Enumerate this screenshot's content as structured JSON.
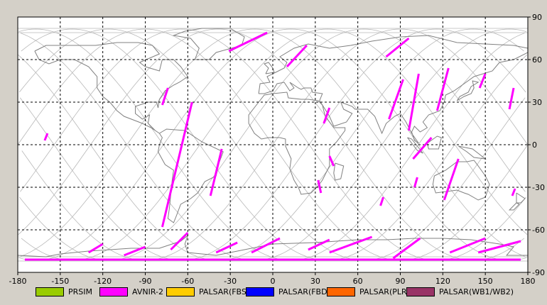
{
  "map": {
    "x_axis": {
      "min": -180,
      "max": 180,
      "step": 30,
      "ticks": [
        "-180",
        "-150",
        "-120",
        "-90",
        "-60",
        "-30",
        "0",
        "30",
        "60",
        "90",
        "120",
        "150",
        "180"
      ]
    },
    "y_axis": {
      "min": -90,
      "max": 90,
      "step": 30,
      "ticks": [
        "90",
        "60",
        "30",
        "0",
        "-30",
        "-60",
        "-90"
      ]
    },
    "grid": true,
    "colors": {
      "ocean": "#ffffff",
      "coast": "#808080",
      "orbit": "#b8b8b8",
      "swath": "#ff00ff",
      "grid": "#000000"
    }
  },
  "legend": {
    "items": [
      {
        "label": "PRSIM",
        "color": "#99cc00"
      },
      {
        "label": "AVNIR-2",
        "color": "#ff00ff"
      },
      {
        "label": "PALSAR(FBS)",
        "color": "#ffcc00"
      },
      {
        "label": "PALSAR(FBD)",
        "color": "#0000ff"
      },
      {
        "label": "PALSAR(PLR)",
        "color": "#ff6600"
      },
      {
        "label": "PALSAR(WB1/WB2)",
        "color": "#993366"
      }
    ]
  },
  "swaths": [
    {
      "lon": [
        -161,
        -159
      ],
      "lat": [
        3,
        8
      ]
    },
    {
      "lon": [
        -78,
        -74
      ],
      "lat": [
        28,
        40
      ]
    },
    {
      "lon": [
        -57,
        -78
      ],
      "lat": [
        30,
        -58
      ]
    },
    {
      "lon": [
        -36,
        -44
      ],
      "lat": [
        -3,
        -36
      ]
    },
    {
      "lon": [
        -31,
        -4
      ],
      "lat": [
        66,
        79
      ]
    },
    {
      "lon": [
        10,
        24
      ],
      "lat": [
        55,
        70
      ]
    },
    {
      "lon": [
        36,
        40
      ],
      "lat": [
        15,
        26
      ]
    },
    {
      "lon": [
        32,
        34
      ],
      "lat": [
        -25,
        -34
      ]
    },
    {
      "lon": [
        40,
        43
      ],
      "lat": [
        -8,
        -15
      ]
    },
    {
      "lon": [
        80,
        96
      ],
      "lat": [
        62,
        75
      ]
    },
    {
      "lon": [
        82,
        92
      ],
      "lat": [
        18,
        46
      ]
    },
    {
      "lon": [
        96,
        103
      ],
      "lat": [
        10,
        50
      ]
    },
    {
      "lon": [
        116,
        124
      ],
      "lat": [
        24,
        54
      ]
    },
    {
      "lon": [
        112,
        99
      ],
      "lat": [
        5,
        -10
      ]
    },
    {
      "lon": [
        102,
        100
      ],
      "lat": [
        -23,
        -30
      ]
    },
    {
      "lon": [
        78,
        76
      ],
      "lat": [
        -37,
        -43
      ]
    },
    {
      "lon": [
        131,
        121
      ],
      "lat": [
        -10,
        -39
      ]
    },
    {
      "lon": [
        150,
        146
      ],
      "lat": [
        50,
        40
      ]
    },
    {
      "lon": [
        170,
        167
      ],
      "lat": [
        40,
        25
      ]
    },
    {
      "lon": [
        171,
        169
      ],
      "lat": [
        -31,
        -36
      ]
    },
    {
      "lon": [
        -60,
        -72
      ],
      "lat": [
        -62,
        -74
      ]
    },
    {
      "lon": [
        -120,
        -130
      ],
      "lat": [
        -70,
        -76
      ]
    },
    {
      "lon": [
        -90,
        -105
      ],
      "lat": [
        -72,
        -78
      ]
    },
    {
      "lon": [
        -25,
        -40
      ],
      "lat": [
        -69,
        -76
      ]
    },
    {
      "lon": [
        5,
        -15
      ],
      "lat": [
        -66,
        -76
      ]
    },
    {
      "lon": [
        40,
        25
      ],
      "lat": [
        -67,
        -74
      ]
    },
    {
      "lon": [
        70,
        40
      ],
      "lat": [
        -65,
        -76
      ]
    },
    {
      "lon": [
        104,
        85
      ],
      "lat": [
        -66,
        -80
      ]
    },
    {
      "lon": [
        150,
        125
      ],
      "lat": [
        -66,
        -76
      ]
    },
    {
      "lon": [
        175,
        145
      ],
      "lat": [
        -68,
        -76
      ]
    },
    {
      "lon": [
        -175,
        175
      ],
      "lat": [
        -81,
        -81
      ]
    }
  ]
}
